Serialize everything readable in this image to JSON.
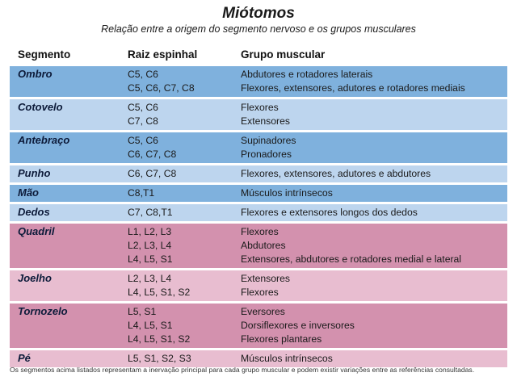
{
  "title": "Miótomos",
  "subtitle": "Relação entre a origem do segmento nervoso e os grupos musculares",
  "headers": {
    "segment": "Segmento",
    "root": "Raiz espinhal",
    "group": "Grupo muscular"
  },
  "colors": {
    "upper_dark": "#7fb1dd",
    "upper_light": "#bdd5ee",
    "lower_dark": "#d391ae",
    "lower_light": "#e8bdd0"
  },
  "rows": [
    {
      "segment": "Ombro",
      "shade": "upper_dark",
      "lines": [
        {
          "root": "C5, C6",
          "group": "Abdutores e rotadores laterais"
        },
        {
          "root": "C5, C6, C7, C8",
          "group": "Flexores, extensores, adutores e rotadores mediais"
        }
      ]
    },
    {
      "segment": "Cotovelo",
      "shade": "upper_light",
      "lines": [
        {
          "root": "C5, C6",
          "group": "Flexores"
        },
        {
          "root": "C7, C8",
          "group": "Extensores"
        }
      ]
    },
    {
      "segment": "Antebraço",
      "shade": "upper_dark",
      "lines": [
        {
          "root": "C5, C6",
          "group": "Supinadores"
        },
        {
          "root": "C6, C7, C8",
          "group": "Pronadores"
        }
      ]
    },
    {
      "segment": "Punho",
      "shade": "upper_light",
      "lines": [
        {
          "root": "C6, C7, C8",
          "group": "Flexores, extensores, adutores e abdutores"
        }
      ]
    },
    {
      "segment": "Mão",
      "shade": "upper_dark",
      "lines": [
        {
          "root": "C8,T1",
          "group": "Músculos intrínsecos"
        }
      ]
    },
    {
      "segment": "Dedos",
      "shade": "upper_light",
      "lines": [
        {
          "root": "C7, C8,T1",
          "group": "Flexores e extensores longos dos dedos"
        }
      ]
    },
    {
      "segment": "Quadril",
      "shade": "lower_dark",
      "lines": [
        {
          "root": "L1, L2, L3",
          "group": "Flexores"
        },
        {
          "root": "L2, L3, L4",
          "group": "Abdutores"
        },
        {
          "root": "L4, L5, S1",
          "group": "Extensores, abdutores e rotadores medial e lateral"
        }
      ]
    },
    {
      "segment": "Joelho",
      "shade": "lower_light",
      "lines": [
        {
          "root": "L2, L3, L4",
          "group": "Extensores"
        },
        {
          "root": "L4, L5, S1, S2",
          "group": "Flexores"
        }
      ]
    },
    {
      "segment": "Tornozelo",
      "shade": "lower_dark",
      "lines": [
        {
          "root": "L5, S1",
          "group": "Eversores"
        },
        {
          "root": "L4, L5, S1",
          "group": "Dorsiflexores e inversores"
        },
        {
          "root": "L4, L5, S1, S2",
          "group": "Flexores plantares"
        }
      ]
    },
    {
      "segment": "Pé",
      "shade": "lower_light",
      "lines": [
        {
          "root": "L5, S1, S2, S3",
          "group": "Músculos intrínsecos"
        }
      ]
    }
  ],
  "footnote": "Os segmentos acima listados representam a inervação principal para cada grupo muscular e podem existir variações entre as referências consultadas."
}
